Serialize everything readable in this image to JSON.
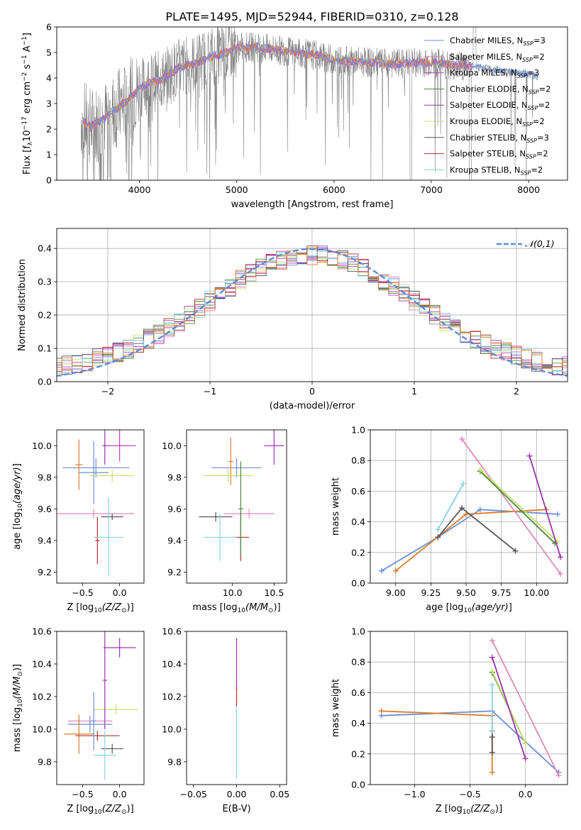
{
  "title": "PLATE=1495, MJD=52944, FIBERID=0310, z=0.128",
  "colors": {
    "chabrier_miles": "#6b8fd6",
    "salpeter_miles": "#e08ab8",
    "kroupa_miles": "#c040c0",
    "chabrier_elodie": "#4a8a3a",
    "salpeter_elodie": "#9a34b0",
    "kroupa_elodie": "#c8e06a",
    "chabrier_stelib": "#555555",
    "salpeter_stelib": "#b0302a",
    "kroupa_stelib": "#86d2e0",
    "orange": "#e07b2a",
    "data_gray": "#808080",
    "normal_curve": "#5b8bd8"
  },
  "chart_data": [
    {
      "id": "spectrum",
      "type": "line",
      "xlabel": "wavelength [Angstrom, rest frame]",
      "ylabel": "Flux [f_λ10⁻¹⁷ erg cm⁻² s⁻¹ A⁻¹]",
      "xlim": [
        3150,
        8400
      ],
      "ylim": [
        0,
        6
      ],
      "xticks": [
        4000,
        5000,
        6000,
        7000,
        8000
      ],
      "yticks": [
        0,
        1,
        2,
        3,
        4,
        5,
        6
      ],
      "continuum": {
        "x": [
          3400,
          3500,
          3600,
          3700,
          3800,
          3900,
          4000,
          4100,
          4200,
          4300,
          4400,
          4500,
          4600,
          4700,
          4800,
          4900,
          5000,
          5200,
          5400,
          5600,
          5800,
          6000,
          6200,
          6400,
          6600,
          6800,
          7000,
          7200,
          7400,
          7600,
          7800,
          8000,
          8100
        ],
        "y": [
          2.4,
          2.1,
          2.3,
          2.6,
          2.9,
          3.2,
          3.6,
          3.8,
          3.9,
          4.1,
          4.4,
          4.5,
          4.6,
          4.8,
          4.9,
          5.0,
          5.2,
          5.2,
          5.1,
          5.0,
          4.9,
          4.7,
          4.65,
          4.6,
          4.55,
          4.6,
          4.6,
          4.5,
          4.45,
          4.35,
          4.25,
          4.15,
          4.05
        ]
      },
      "legend": [
        "Chabrier MILES, N_SSP=3",
        "Salpeter MILES, N_SSP=2",
        "Kroupa MILES, N_SSP=3",
        "Chabrier ELODIE, N_SSP=2",
        "Salpeter ELODIE, N_SSP=2",
        "Kroupa ELODIE, N_SSP=2",
        "Chabrier STELIB, N_SSP=3",
        "Salpeter STELIB, N_SSP=2",
        "Kroupa STELIB, N_SSP=2"
      ]
    },
    {
      "id": "residuals",
      "type": "line",
      "xlabel": "(data-model)/error",
      "ylabel": "Normed distribution",
      "xlim": [
        -2.5,
        2.5
      ],
      "ylim": [
        0,
        0.46
      ],
      "xticks": [
        -2,
        -1,
        0,
        1,
        2
      ],
      "yticks": [
        0.0,
        0.1,
        0.2,
        0.3,
        0.4
      ],
      "legend": "𝒩(0,1)"
    },
    {
      "id": "age_vs_Z",
      "type": "scatter",
      "xlabel": "Z [log₁₀(Z/Z☉)]",
      "ylabel": "age  [log₁₀(age/yr)]",
      "xlim": [
        -0.85,
        0.33
      ],
      "ylim": [
        9.13,
        10.1
      ],
      "xticks": [
        -0.5,
        0.0
      ],
      "yticks": [
        9.2,
        9.4,
        9.6,
        9.8,
        10.0
      ],
      "points": [
        {
          "s": "chabrier_miles",
          "x": -0.32,
          "y": 9.86,
          "ex": 0.45,
          "ey": 0.06
        },
        {
          "s": "chabrier_miles",
          "x": -0.35,
          "y": 9.83,
          "ex": 0.2,
          "ey": 0.2
        },
        {
          "s": "orange",
          "x": -0.55,
          "y": 9.88,
          "ex": 0.05,
          "ey": 0.16
        },
        {
          "s": "kroupa_miles",
          "x": 0.0,
          "y": 10.0,
          "ex": 0.22,
          "ey": 0.1
        },
        {
          "s": "salpeter_elodie",
          "x": -0.2,
          "y": 10.0,
          "ex": 0.03,
          "ey": 0.12
        },
        {
          "s": "kroupa_elodie",
          "x": -0.1,
          "y": 9.81,
          "ex": 0.3,
          "ey": 0.04
        },
        {
          "s": "salpeter_miles",
          "x": -0.35,
          "y": 9.57,
          "ex": 0.55,
          "ey": 0.03
        },
        {
          "s": "chabrier_stelib",
          "x": -0.1,
          "y": 9.55,
          "ex": 0.15,
          "ey": 0.02
        },
        {
          "s": "salpeter_stelib",
          "x": -0.3,
          "y": 9.4,
          "ex": 0.03,
          "ey": 0.15
        },
        {
          "s": "kroupa_stelib",
          "x": -0.15,
          "y": 9.42,
          "ex": 0.2,
          "ey": 0.25
        }
      ]
    },
    {
      "id": "age_vs_mass",
      "type": "scatter",
      "xlabel": "mass [log₁₀(M/M☉)]",
      "ylabel": "",
      "xlim": [
        9.45,
        10.65
      ],
      "ylim": [
        9.13,
        10.1
      ],
      "xticks": [
        10.0,
        10.5
      ],
      "yticks": [
        9.2,
        9.4,
        9.6,
        9.8,
        10.0
      ],
      "points": [
        {
          "s": "chabrier_miles",
          "x": 10.05,
          "y": 9.86,
          "ex": 0.3,
          "ey": 0.06
        },
        {
          "s": "orange",
          "x": 9.98,
          "y": 9.9,
          "ex": 0.03,
          "ey": 0.15
        },
        {
          "s": "salpeter_elodie",
          "x": 10.5,
          "y": 10.0,
          "ex": 0.12,
          "ey": 0.12
        },
        {
          "s": "kroupa_elodie",
          "x": 9.95,
          "y": 9.81,
          "ex": 0.3,
          "ey": 0.04
        },
        {
          "s": "salpeter_miles",
          "x": 10.2,
          "y": 9.57,
          "ex": 0.3,
          "ey": 0.03
        },
        {
          "s": "chabrier_stelib",
          "x": 9.8,
          "y": 9.55,
          "ex": 0.2,
          "ey": 0.03
        },
        {
          "s": "salpeter_stelib",
          "x": 10.1,
          "y": 9.42,
          "ex": 0.1,
          "ey": 0.15
        },
        {
          "s": "kroupa_stelib",
          "x": 9.85,
          "y": 9.42,
          "ex": 0.2,
          "ey": 0.15
        },
        {
          "s": "chabrier_elodie",
          "x": 10.1,
          "y": 9.6,
          "ex": 0.03,
          "ey": 0.3
        }
      ]
    },
    {
      "id": "weight_vs_age",
      "type": "line",
      "xlabel": "age  [log₁₀(age/yr)]",
      "ylabel": "mass weight",
      "xlim": [
        8.82,
        10.22
      ],
      "ylim": [
        0,
        1.0
      ],
      "xticks": [
        9.0,
        9.25,
        9.5,
        9.75,
        10.0
      ],
      "yticks": [
        0.0,
        0.2,
        0.4,
        0.6,
        0.8,
        1.0
      ],
      "series": [
        {
          "s": "chabrier_miles",
          "x": [
            8.9,
            9.3,
            9.6,
            10.15
          ],
          "y": [
            0.08,
            0.3,
            0.48,
            0.45
          ]
        },
        {
          "s": "orange",
          "x": [
            9.0,
            9.5,
            10.07
          ],
          "y": [
            0.08,
            0.45,
            0.48
          ]
        },
        {
          "s": "kroupa_stelib",
          "x": [
            9.3,
            9.48
          ],
          "y": [
            0.35,
            0.65
          ]
        },
        {
          "s": "chabrier_stelib",
          "x": [
            9.3,
            9.47,
            9.85
          ],
          "y": [
            0.3,
            0.49,
            0.21
          ]
        },
        {
          "s": "salpeter_miles",
          "x": [
            9.47,
            10.17
          ],
          "y": [
            0.94,
            0.06
          ]
        },
        {
          "s": "chabrier_elodie",
          "x": [
            9.6,
            10.13
          ],
          "y": [
            0.73,
            0.26
          ]
        },
        {
          "s": "kroupa_elodie",
          "x": [
            9.6,
            10.15
          ],
          "y": [
            0.74,
            0.27
          ]
        },
        {
          "s": "salpeter_elodie",
          "x": [
            9.95,
            10.17
          ],
          "y": [
            0.83,
            0.17
          ]
        }
      ]
    },
    {
      "id": "mass_vs_Z",
      "type": "scatter",
      "xlabel": "Z [log₁₀(Z/Z☉)]",
      "ylabel": "mass [log₁₀(M/M☉)]",
      "xlim": [
        -0.85,
        0.33
      ],
      "ylim": [
        9.66,
        10.6
      ],
      "xticks": [
        -0.5,
        0.0
      ],
      "yticks": [
        9.8,
        10.0,
        10.2,
        10.4,
        10.6
      ],
      "points": [
        {
          "s": "salpeter_elodie",
          "x": 0.0,
          "y": 10.5,
          "ex": 0.22,
          "ey": 0.06
        },
        {
          "s": "kroupa_elodie",
          "x": -0.05,
          "y": 10.12,
          "ex": 0.3,
          "ey": 0.03
        },
        {
          "s": "salpeter_miles",
          "x": -0.4,
          "y": 10.05,
          "ex": 0.3,
          "ey": 0.03
        },
        {
          "s": "chabrier_miles",
          "x": -0.4,
          "y": 10.03,
          "ex": 0.3,
          "ey": 0.05
        },
        {
          "s": "orange",
          "x": -0.55,
          "y": 9.97,
          "ex": 0.2,
          "ey": 0.12
        },
        {
          "s": "salpeter_stelib",
          "x": -0.3,
          "y": 9.96,
          "ex": 0.3,
          "ey": 0.03
        },
        {
          "s": "chabrier_stelib",
          "x": -0.1,
          "y": 9.88,
          "ex": 0.15,
          "ey": 0.03
        },
        {
          "s": "kroupa_stelib",
          "x": -0.2,
          "y": 9.84,
          "ex": 0.15,
          "ey": 0.15
        },
        {
          "s": "chabrier_miles",
          "x": -0.35,
          "y": 10.05,
          "ex": 0.03,
          "ey": 0.18
        },
        {
          "s": "salpeter_elodie",
          "x": -0.2,
          "y": 10.3,
          "ex": 0.03,
          "ey": 0.3
        }
      ]
    },
    {
      "id": "mass_vs_ebv",
      "type": "scatter",
      "xlabel": "E(B-V)",
      "ylabel": "",
      "xlim": [
        -0.058,
        0.058
      ],
      "ylim": [
        9.66,
        10.6
      ],
      "xticks": [
        -0.05,
        0.0,
        0.05
      ],
      "yticks": [
        9.8,
        10.0,
        10.2,
        10.4,
        10.6
      ],
      "points": [
        {
          "s": "salpeter_elodie",
          "x": 0.0,
          "y": 10.4,
          "ex": 0.0,
          "ey": 0.16
        },
        {
          "s": "salpeter_stelib",
          "x": 0.0,
          "y": 10.2,
          "ex": 0.0,
          "ey": 0.06
        },
        {
          "s": "kroupa_stelib",
          "x": 0.0,
          "y": 9.92,
          "ex": 0.0,
          "ey": 0.22
        }
      ]
    },
    {
      "id": "weight_vs_Z",
      "type": "line",
      "xlabel": "Z [log₁₀(Z/Z☉)]",
      "ylabel": "mass weight",
      "xlim": [
        -1.4,
        0.38
      ],
      "ylim": [
        0,
        1.0
      ],
      "xticks": [
        -1.0,
        -0.5,
        0.0
      ],
      "yticks": [
        0.0,
        0.2,
        0.4,
        0.6,
        0.8,
        1.0
      ],
      "series": [
        {
          "s": "chabrier_miles",
          "x": [
            -1.3,
            -0.3,
            0.3
          ],
          "y": [
            0.45,
            0.48,
            0.08
          ]
        },
        {
          "s": "orange",
          "x": [
            -1.3,
            -0.3
          ],
          "y": [
            0.48,
            0.45
          ]
        },
        {
          "s": "orange",
          "x": [
            -0.3,
            -0.3
          ],
          "y": [
            0.45,
            0.08
          ]
        },
        {
          "s": "chabrier_stelib",
          "x": [
            -0.3,
            -0.3,
            -0.3
          ],
          "y": [
            0.35,
            0.31,
            0.21
          ]
        },
        {
          "s": "kroupa_stelib",
          "x": [
            -0.3,
            -0.3
          ],
          "y": [
            0.65,
            0.35
          ]
        },
        {
          "s": "salpeter_miles",
          "x": [
            -0.3,
            0.3
          ],
          "y": [
            0.94,
            0.06
          ]
        },
        {
          "s": "chabrier_elodie",
          "x": [
            -0.3,
            0.0
          ],
          "y": [
            0.73,
            0.27
          ]
        },
        {
          "s": "kroupa_elodie",
          "x": [
            -0.3,
            0.0
          ],
          "y": [
            0.74,
            0.27
          ]
        },
        {
          "s": "salpeter_elodie",
          "x": [
            -0.3,
            0.0
          ],
          "y": [
            0.83,
            0.17
          ]
        }
      ]
    }
  ]
}
